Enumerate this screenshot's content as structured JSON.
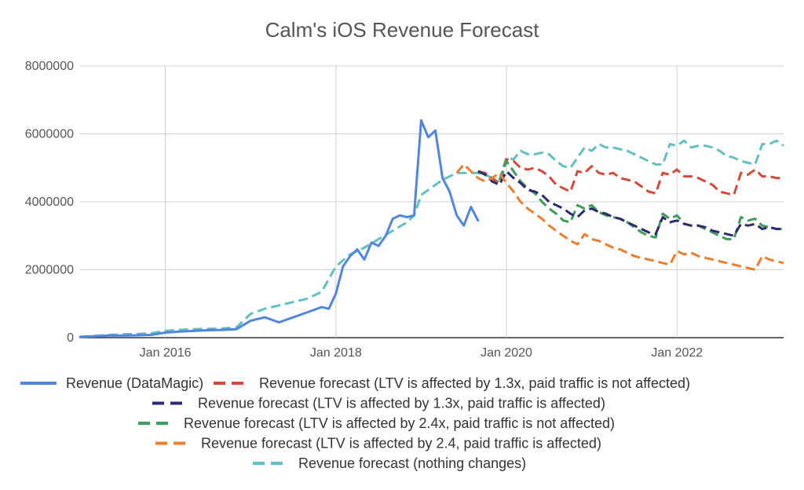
{
  "chart_data": {
    "type": "line",
    "title": "Calm's iOS Revenue Forecast",
    "xlabel": "",
    "ylabel": "",
    "x_range": [
      "2015-01",
      "2023-04"
    ],
    "ylim": [
      0,
      8000000
    ],
    "y_ticks": [
      "0",
      "2000000",
      "4000000",
      "6000000",
      "8000000"
    ],
    "x_ticks": [
      {
        "label": "Jan 2016",
        "x": "2016-01"
      },
      {
        "label": "Jan 2018",
        "x": "2018-01"
      },
      {
        "label": "Jan 2020",
        "x": "2020-01"
      },
      {
        "label": "Jan 2022",
        "x": "2022-01"
      }
    ],
    "grid": "vertical and horizontal gridlines",
    "legend_position": "bottom",
    "series": [
      {
        "name": "Revenue (DataMagic)",
        "color": "#5086e0",
        "style": "solid",
        "x": [
          "2015-01",
          "2015-03",
          "2015-05",
          "2015-07",
          "2015-09",
          "2015-11",
          "2016-01",
          "2016-03",
          "2016-05",
          "2016-07",
          "2016-09",
          "2016-11",
          "2017-01",
          "2017-03",
          "2017-05",
          "2017-07",
          "2017-09",
          "2017-11",
          "2017-12",
          "2018-01",
          "2018-02",
          "2018-03",
          "2018-04",
          "2018-05",
          "2018-06",
          "2018-07",
          "2018-08",
          "2018-09",
          "2018-10",
          "2018-11",
          "2018-12",
          "2019-01",
          "2019-02",
          "2019-03",
          "2019-04",
          "2019-05",
          "2019-06",
          "2019-07",
          "2019-08",
          "2019-09"
        ],
        "values": [
          20000,
          40000,
          60000,
          60000,
          70000,
          80000,
          150000,
          180000,
          200000,
          220000,
          230000,
          250000,
          500000,
          600000,
          450000,
          600000,
          750000,
          900000,
          850000,
          1300000,
          2100000,
          2400000,
          2600000,
          2300000,
          2800000,
          2700000,
          3000000,
          3500000,
          3600000,
          3550000,
          3600000,
          6400000,
          5900000,
          6100000,
          4700000,
          4300000,
          3600000,
          3300000,
          3850000,
          3450000
        ]
      },
      {
        "name": "Revenue forecast (LTV is affected by 1.3x, paid traffic is not affected)",
        "color": "#d4493a",
        "style": "dashed",
        "x": [
          "2019-09",
          "2019-10",
          "2019-11",
          "2019-12",
          "2020-01",
          "2020-02",
          "2020-03",
          "2020-04",
          "2020-05",
          "2020-06",
          "2020-07",
          "2020-08",
          "2020-09",
          "2020-10",
          "2020-11",
          "2020-12",
          "2021-01",
          "2021-02",
          "2021-03",
          "2021-04",
          "2021-05",
          "2021-06",
          "2021-07",
          "2021-08",
          "2021-09",
          "2021-10",
          "2021-11",
          "2021-12",
          "2022-01",
          "2022-02",
          "2022-03",
          "2022-04",
          "2022-05",
          "2022-06",
          "2022-07",
          "2022-08",
          "2022-09",
          "2022-10",
          "2022-11",
          "2022-12",
          "2023-01",
          "2023-02",
          "2023-03",
          "2023-04"
        ],
        "values": [
          4900000,
          4850000,
          4700000,
          4550000,
          5250000,
          5200000,
          5000000,
          4950000,
          5000000,
          4900000,
          4750000,
          4500000,
          4400000,
          4300000,
          4900000,
          4850000,
          5050000,
          4850000,
          4800000,
          4850000,
          4700000,
          4650000,
          4600000,
          4450000,
          4300000,
          4250000,
          4850000,
          4800000,
          4950000,
          4750000,
          4750000,
          4700000,
          4600000,
          4500000,
          4300000,
          4250000,
          4200000,
          4850000,
          4800000,
          4950000,
          4750000,
          4750000,
          4700000,
          4700000
        ]
      },
      {
        "name": "Revenue forecast (LTV is affected by 1.3x, paid traffic is affected)",
        "color": "#2d2a6e",
        "style": "dashed",
        "x": [
          "2019-09",
          "2019-10",
          "2019-11",
          "2019-12",
          "2020-01",
          "2020-02",
          "2020-03",
          "2020-04",
          "2020-05",
          "2020-06",
          "2020-07",
          "2020-08",
          "2020-09",
          "2020-10",
          "2020-11",
          "2020-12",
          "2021-01",
          "2021-02",
          "2021-03",
          "2021-04",
          "2021-05",
          "2021-06",
          "2021-07",
          "2021-08",
          "2021-09",
          "2021-10",
          "2021-11",
          "2021-12",
          "2022-01",
          "2022-02",
          "2022-03",
          "2022-04",
          "2022-05",
          "2022-06",
          "2022-07",
          "2022-08",
          "2022-09",
          "2022-10",
          "2022-11",
          "2022-12",
          "2023-01",
          "2023-02",
          "2023-03",
          "2023-04"
        ],
        "values": [
          4900000,
          4800000,
          4600000,
          4500000,
          4900000,
          4700000,
          4550000,
          4350000,
          4300000,
          4200000,
          4000000,
          3900000,
          3800000,
          3650000,
          3550000,
          3750000,
          3800000,
          3700000,
          3650000,
          3550000,
          3500000,
          3400000,
          3300000,
          3200000,
          3100000,
          3050000,
          3550000,
          3400000,
          3450000,
          3350000,
          3300000,
          3300000,
          3250000,
          3150000,
          3100000,
          3050000,
          3000000,
          3350000,
          3300000,
          3350000,
          3200000,
          3250000,
          3200000,
          3200000
        ]
      },
      {
        "name": "Revenue forecast (LTV is affected by 2.4x, paid traffic is not affected)",
        "color": "#3c9c5a",
        "style": "dashed",
        "x": [
          "2019-09",
          "2019-10",
          "2019-11",
          "2019-12",
          "2020-01",
          "2020-02",
          "2020-03",
          "2020-04",
          "2020-05",
          "2020-06",
          "2020-07",
          "2020-08",
          "2020-09",
          "2020-10",
          "2020-11",
          "2020-12",
          "2021-01",
          "2021-02",
          "2021-03",
          "2021-04",
          "2021-05",
          "2021-06",
          "2021-07",
          "2021-08",
          "2021-09",
          "2021-10",
          "2021-11",
          "2021-12",
          "2022-01",
          "2022-02",
          "2022-03",
          "2022-04",
          "2022-05",
          "2022-06",
          "2022-07",
          "2022-08",
          "2022-09",
          "2022-10",
          "2022-11",
          "2022-12",
          "2023-01",
          "2023-02",
          "2023-03",
          "2023-04"
        ],
        "values": [
          4900000,
          4800000,
          4600000,
          4550000,
          5200000,
          4900000,
          4600000,
          4400000,
          4250000,
          4000000,
          3800000,
          3650000,
          3450000,
          3400000,
          3900000,
          3800000,
          3900000,
          3700000,
          3600000,
          3550000,
          3500000,
          3400000,
          3250000,
          3100000,
          3000000,
          2950000,
          3650000,
          3500000,
          3600000,
          3350000,
          3300000,
          3300000,
          3200000,
          3100000,
          3000000,
          2900000,
          2900000,
          3550000,
          3450000,
          3500000,
          3300000,
          3250000,
          3200000,
          3200000
        ]
      },
      {
        "name": "Revenue forecast (LTV is affected by 2.4, paid traffic is affected)",
        "color": "#ef7d2e",
        "style": "dashed",
        "x": [
          "2019-06",
          "2019-07",
          "2019-08",
          "2019-09",
          "2019-10",
          "2019-11",
          "2019-12",
          "2020-01",
          "2020-02",
          "2020-03",
          "2020-04",
          "2020-05",
          "2020-06",
          "2020-07",
          "2020-08",
          "2020-09",
          "2020-10",
          "2020-11",
          "2020-12",
          "2021-01",
          "2021-02",
          "2021-03",
          "2021-04",
          "2021-05",
          "2021-06",
          "2021-07",
          "2021-08",
          "2021-09",
          "2021-10",
          "2021-11",
          "2021-12",
          "2022-01",
          "2022-02",
          "2022-03",
          "2022-04",
          "2022-05",
          "2022-06",
          "2022-07",
          "2022-08",
          "2022-09",
          "2022-10",
          "2022-11",
          "2022-12",
          "2023-01",
          "2023-02",
          "2023-03",
          "2023-04"
        ],
        "values": [
          4850000,
          5100000,
          4900000,
          4700000,
          4600000,
          4700000,
          4850000,
          4550000,
          4300000,
          4000000,
          3800000,
          3650000,
          3500000,
          3300000,
          3150000,
          3000000,
          2850000,
          2750000,
          3050000,
          2900000,
          2850000,
          2750000,
          2650000,
          2600000,
          2500000,
          2400000,
          2350000,
          2300000,
          2250000,
          2200000,
          2150000,
          2550000,
          2450000,
          2500000,
          2400000,
          2350000,
          2300000,
          2250000,
          2200000,
          2150000,
          2100000,
          2050000,
          2000000,
          2400000,
          2300000,
          2250000,
          2200000
        ]
      },
      {
        "name": "Revenue forecast (nothing changes)",
        "color": "#62bfc2",
        "style": "dashed",
        "x": [
          "2015-01",
          "2015-03",
          "2015-05",
          "2015-07",
          "2015-09",
          "2015-11",
          "2016-01",
          "2016-03",
          "2016-05",
          "2016-07",
          "2016-09",
          "2016-11",
          "2017-01",
          "2017-03",
          "2017-05",
          "2017-07",
          "2017-09",
          "2017-11",
          "2018-01",
          "2018-03",
          "2018-05",
          "2018-07",
          "2018-09",
          "2018-11",
          "2018-12",
          "2019-01",
          "2019-02",
          "2019-03",
          "2019-04",
          "2019-05",
          "2019-06",
          "2019-07",
          "2019-08",
          "2019-09",
          "2019-10",
          "2019-11",
          "2019-12",
          "2020-01",
          "2020-02",
          "2020-03",
          "2020-04",
          "2020-05",
          "2020-06",
          "2020-07",
          "2020-08",
          "2020-09",
          "2020-10",
          "2020-11",
          "2020-12",
          "2021-01",
          "2021-02",
          "2021-03",
          "2021-04",
          "2021-05",
          "2021-06",
          "2021-07",
          "2021-08",
          "2021-09",
          "2021-10",
          "2021-11",
          "2021-12",
          "2022-01",
          "2022-02",
          "2022-03",
          "2022-04",
          "2022-05",
          "2022-06",
          "2022-07",
          "2022-08",
          "2022-09",
          "2022-10",
          "2022-11",
          "2022-12",
          "2023-01",
          "2023-02",
          "2023-03",
          "2023-04"
        ],
        "values": [
          30000,
          50000,
          80000,
          100000,
          110000,
          130000,
          200000,
          230000,
          250000,
          260000,
          270000,
          300000,
          700000,
          850000,
          950000,
          1050000,
          1150000,
          1350000,
          2100000,
          2450000,
          2650000,
          2900000,
          3150000,
          3400000,
          3600000,
          4200000,
          4350000,
          4500000,
          4650000,
          4750000,
          4850000,
          4850000,
          4850000,
          4850000,
          4800000,
          4700000,
          4650000,
          5300000,
          5250000,
          5500000,
          5400000,
          5400000,
          5450000,
          5400000,
          5200000,
          5050000,
          5000000,
          5300000,
          5600000,
          5500000,
          5700000,
          5600000,
          5600000,
          5550000,
          5500000,
          5400000,
          5300000,
          5200000,
          5100000,
          5100000,
          5700000,
          5650000,
          5800000,
          5600000,
          5650000,
          5650000,
          5600000,
          5500000,
          5350000,
          5300000,
          5200000,
          5150000,
          5100000,
          5700000,
          5700000,
          5800000,
          5650000
        ]
      }
    ]
  }
}
